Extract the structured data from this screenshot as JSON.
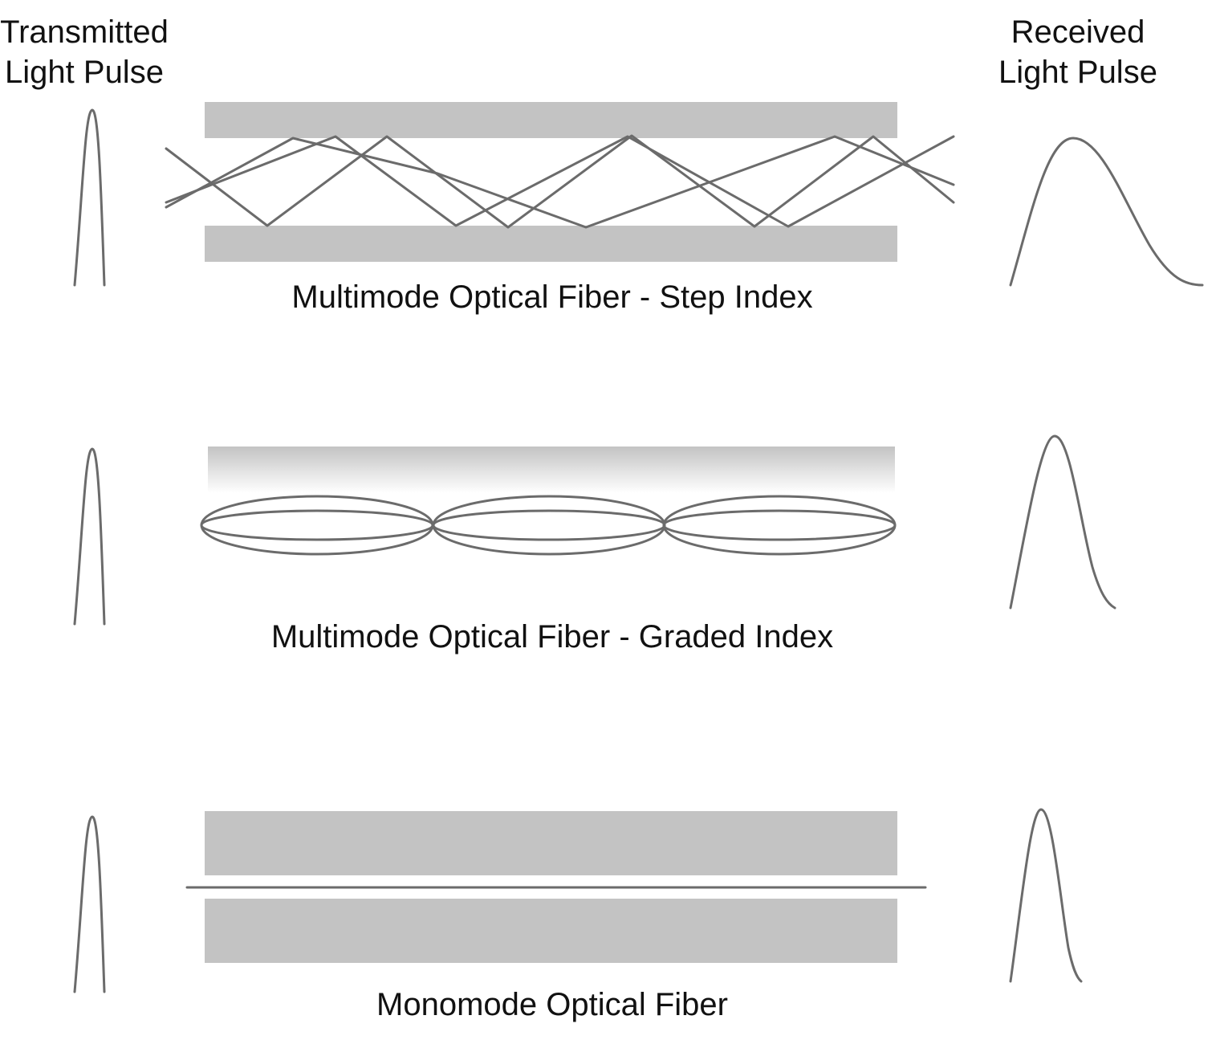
{
  "headers": {
    "transmitted": [
      "Transmitted",
      "Light Pulse"
    ],
    "received": [
      "Received",
      "Light Pulse"
    ]
  },
  "fibers": [
    {
      "id": "step-index",
      "caption": "Multimode Optical Fiber - Step Index"
    },
    {
      "id": "graded-index",
      "caption": "Multimode Optical Fiber - Graded Index"
    },
    {
      "id": "monomode",
      "caption": "Monomode Optical Fiber"
    }
  ],
  "colors": {
    "cladding": "#c3c3c3",
    "ray": "#6b6b6b",
    "text": "#111111",
    "background": "#ffffff"
  }
}
